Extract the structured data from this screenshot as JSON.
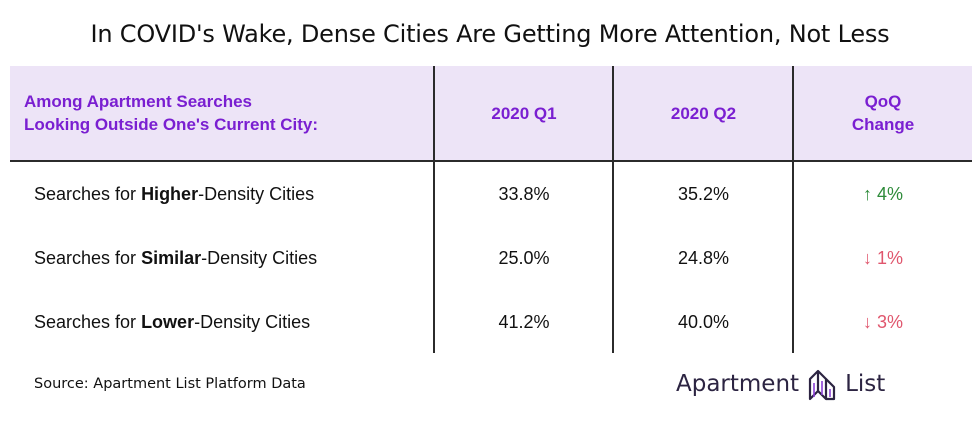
{
  "title": "In COVID's Wake, Dense Cities Are Getting More Attention, Not Less",
  "chart_data": {
    "type": "table",
    "columns": [
      "Among Apartment Searches Looking Outside One's Current City:",
      "2020 Q1",
      "2020 Q2",
      "QoQ Change"
    ],
    "rows": [
      {
        "prefix": "Searches for ",
        "emphasis": "Higher",
        "suffix": "-Density Cities",
        "q1": "33.8%",
        "q2": "35.2%",
        "arrow": "↑",
        "change": "4%",
        "direction": "up"
      },
      {
        "prefix": "Searches for ",
        "emphasis": "Similar",
        "suffix": "-Density Cities",
        "q1": "25.0%",
        "q2": "24.8%",
        "arrow": "↓",
        "change": "1%",
        "direction": "down"
      },
      {
        "prefix": "Searches for ",
        "emphasis": "Lower",
        "suffix": "-Density Cities",
        "q1": "41.2%",
        "q2": "40.0%",
        "arrow": "↓",
        "change": "3%",
        "direction": "down"
      }
    ]
  },
  "header_lines": {
    "col0_line1": "Among Apartment Searches",
    "col0_line2": "Looking Outside One's Current City:",
    "col3_line1": "QoQ",
    "col3_line2": "Change"
  },
  "source": "Source: Apartment List Platform Data",
  "logo": {
    "word1": "Apartment",
    "word2": "List",
    "icon": "apartment-list-logo-icon"
  },
  "colors": {
    "header_bg": "#ede4f7",
    "header_text": "#7a1fd1",
    "up": "#2e8b3a",
    "down": "#e0566d",
    "logo": "#2c2442"
  }
}
